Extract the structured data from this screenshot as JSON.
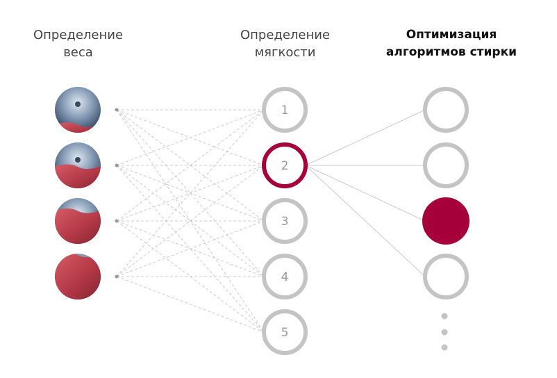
{
  "columns": [
    {
      "title_line1": "Определение",
      "title_line2": "веса"
    },
    {
      "title_line1": "Определение",
      "title_line2": "мягкости"
    },
    {
      "title_line1": "Оптимизация",
      "title_line2": "алгоритмов стирки"
    }
  ],
  "weight_levels": [
    0.2,
    0.5,
    0.75,
    1.0
  ],
  "softness_nodes": [
    "1",
    "2",
    "3",
    "4",
    "5"
  ],
  "selected_softness": 1,
  "algorithm_nodes": 4,
  "selected_algorithm": 2,
  "colors": {
    "accent": "#a6003a",
    "inactive": "#c4c4c4",
    "line": "#cccccc",
    "fabric": "#c0464f",
    "steel": "#8fa4bc"
  }
}
